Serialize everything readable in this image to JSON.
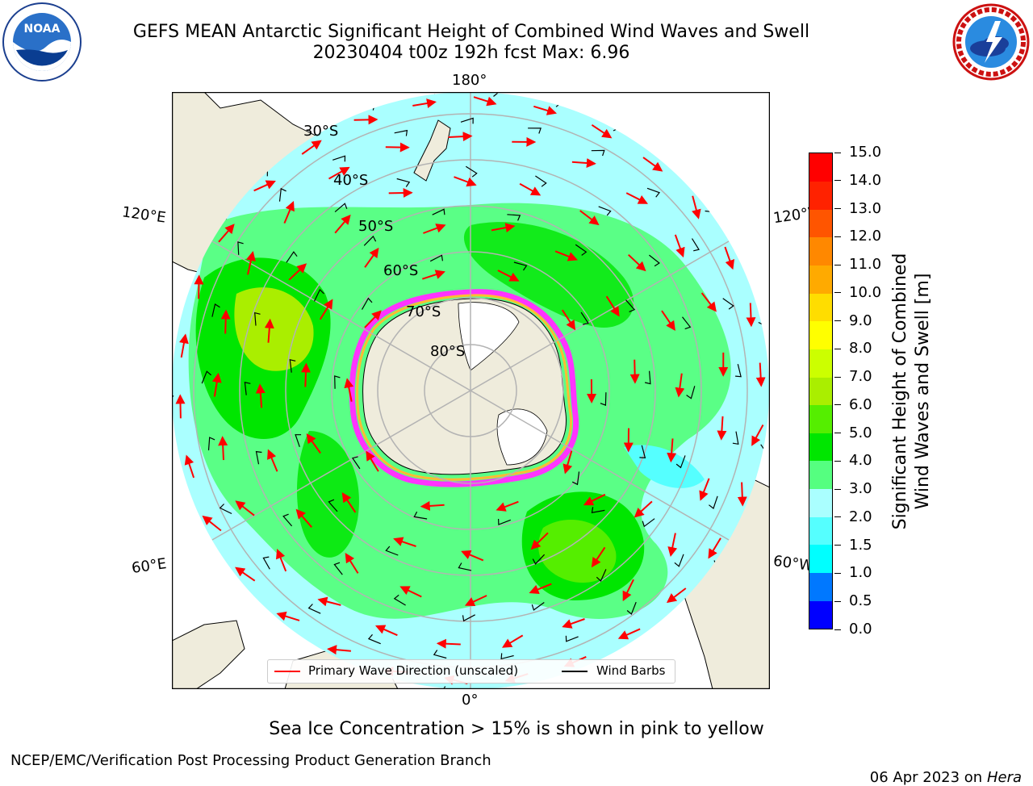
{
  "header": {
    "title_line1": "GEFS MEAN Antarctic Significant Height of Combined Wind Waves and Swell",
    "title_line2": "20230404 t00z 192h fcst   Max: 6.96"
  },
  "logos": {
    "noaa_text": "NOAA",
    "noaa_ring_text": "NATIONAL OCEANIC AND ATMOSPHERIC ADMINISTRATION • U.S. DEPARTMENT OF COMMERCE",
    "nws_ring_text": "NATIONAL WEATHER SERVICE"
  },
  "map": {
    "longitude_labels": {
      "top": "180°",
      "bottom": "0°",
      "upper_left": "120°E",
      "upper_right": "120°W",
      "lower_left": "60°E",
      "lower_right": "60°W"
    },
    "latitude_labels": [
      "30°S",
      "40°S",
      "50°S",
      "60°S",
      "70°S",
      "80°S"
    ],
    "colors": {
      "ocean_low": "#aaffff",
      "ocean_mid": "#55ff80",
      "ocean_high": "#00e600",
      "land": "#efecdc",
      "ice": "#ff33ff",
      "arrow": "#ff0000"
    }
  },
  "colorbar": {
    "title_line1": "Significant Height of Combined",
    "title_line2": "Wind Waves and Swell [m]",
    "ticks": [
      "0.0",
      "0.5",
      "1.0",
      "1.5",
      "2.0",
      "3.0",
      "4.0",
      "5.0",
      "6.0",
      "7.0",
      "8.0",
      "9.0",
      "10.0",
      "11.0",
      "12.0",
      "13.0",
      "14.0",
      "15.0"
    ],
    "colors": [
      "#0000ff",
      "#0078ff",
      "#00ffff",
      "#55ffff",
      "#aaffff",
      "#55ff80",
      "#00e600",
      "#55ee00",
      "#aaee00",
      "#ccff00",
      "#ffff00",
      "#ffdd00",
      "#ffaa00",
      "#ff8800",
      "#ff5500",
      "#ff2200",
      "#ff0000"
    ]
  },
  "legend": {
    "wave_label": "Primary Wave Direction (unscaled)",
    "wave_color": "#ff0000",
    "barb_label": "Wind Barbs",
    "barb_color": "#000000"
  },
  "notes": {
    "sea_ice": "Sea Ice Concentration > 15% is shown in pink to yellow"
  },
  "footer": {
    "left": "NCEP/EMC/Verification Post Processing Product Generation Branch",
    "date": "06 Apr 2023 on ",
    "host": "Hera"
  }
}
